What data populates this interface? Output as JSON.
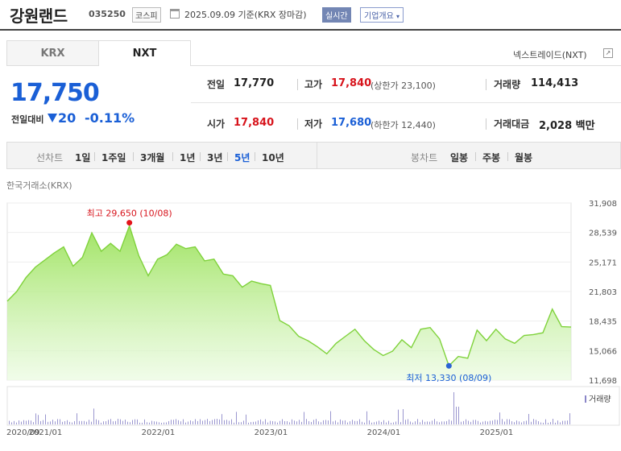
{
  "header": {
    "name": "강원랜드",
    "code": "035250",
    "market": "코스피",
    "date": "2025.09.09  기준(KRX 장마감)",
    "realtime": "실시간",
    "company_info": "기업개요"
  },
  "tabs": [
    {
      "label": "KRX",
      "selected": false
    },
    {
      "label": "NXT",
      "selected": true
    }
  ],
  "nxt_link": "넥스트레이드(NXT)",
  "quote": {
    "price": "17,750",
    "change_label": "전일대비",
    "change": "20",
    "change_pct": "-0.11%",
    "prev_close_label": "전일",
    "prev_close": "17,770",
    "high_label": "고가",
    "high": "17,840",
    "upper_limit": "(상한가 23,100)",
    "volume_label": "거래량",
    "volume": "114,413",
    "open_label": "시가",
    "open": "17,840",
    "low_label": "저가",
    "low": "17,680",
    "lower_limit": "(하한가 12,440)",
    "amount_label": "거래대금",
    "amount": "2,028 백만"
  },
  "period": {
    "line_label": "선차트",
    "line_items": [
      "1일",
      "1주일",
      "3개월",
      "1년",
      "3년",
      "5년",
      "10년"
    ],
    "selected": "5년",
    "candle_label": "봉차트",
    "candle_items": [
      "일봉",
      "주봉",
      "월봉"
    ]
  },
  "chart_source": "한국거래소(KRX)",
  "chart_data": {
    "type": "area",
    "ylim": [
      11698,
      31908
    ],
    "yticks": [
      "31,908",
      "28,539",
      "25,171",
      "21,803",
      "18,435",
      "15,066",
      "11,698"
    ],
    "ytick_values": [
      31908,
      28539,
      25171,
      21803,
      18435,
      15066,
      11698
    ],
    "xticks": [
      "2020/09",
      "2021/01",
      "2022/01",
      "2023/01",
      "2024/01",
      "2025/01"
    ],
    "xtick_dates": [
      "2020-09",
      "2021-01",
      "2022-01",
      "2023-01",
      "2024-01",
      "2025-01"
    ],
    "x_range": [
      "2020-09",
      "2025-09"
    ],
    "max_label": "최고 29,650 (10/08)",
    "max_point": {
      "x": "2021-10",
      "y": 29650
    },
    "min_label": "최저 13,330 (08/09)",
    "min_point": {
      "x": "2024-08",
      "y": 13330
    },
    "x": [
      "2020-09",
      "2020-10",
      "2020-11",
      "2020-12",
      "2021-01",
      "2021-02",
      "2021-03",
      "2021-04",
      "2021-05",
      "2021-06",
      "2021-07",
      "2021-08",
      "2021-09",
      "2021-10",
      "2021-11",
      "2021-12",
      "2022-01",
      "2022-02",
      "2022-03",
      "2022-04",
      "2022-05",
      "2022-06",
      "2022-07",
      "2022-08",
      "2022-09",
      "2022-10",
      "2022-11",
      "2022-12",
      "2023-01",
      "2023-02",
      "2023-03",
      "2023-04",
      "2023-05",
      "2023-06",
      "2023-07",
      "2023-08",
      "2023-09",
      "2023-10",
      "2023-11",
      "2023-12",
      "2024-01",
      "2024-02",
      "2024-03",
      "2024-04",
      "2024-05",
      "2024-06",
      "2024-07",
      "2024-08",
      "2024-09",
      "2024-10",
      "2024-11",
      "2024-12",
      "2025-01",
      "2025-02",
      "2025-03",
      "2025-04",
      "2025-05",
      "2025-06",
      "2025-07",
      "2025-08",
      "2025-09"
    ],
    "y": [
      20700,
      21800,
      23400,
      24600,
      25400,
      26200,
      26900,
      24700,
      25700,
      28500,
      26400,
      27300,
      26400,
      29300,
      25900,
      23600,
      25500,
      26000,
      27200,
      26700,
      26900,
      25300,
      25500,
      23800,
      23600,
      22300,
      23000,
      22700,
      22500,
      18500,
      17900,
      16700,
      16200,
      15500,
      14700,
      15900,
      16700,
      17500,
      16200,
      15200,
      14500,
      15000,
      16300,
      15400,
      17500,
      17700,
      16400,
      13330,
      14400,
      14200,
      17400,
      16200,
      17500,
      16400,
      15900,
      16800,
      16900,
      17100,
      19800,
      17800,
      17750
    ]
  },
  "volume_legend": "거래량"
}
